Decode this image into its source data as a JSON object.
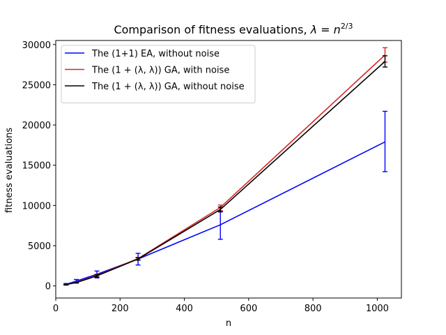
{
  "chart_data": {
    "type": "line",
    "title_main": "Comparison of fitness evaluations, ",
    "title_math": "λ = n",
    "title_sup": "2/3",
    "xlabel": "n",
    "ylabel": "fitness evaluations",
    "xlim": [
      0,
      1075
    ],
    "ylim": [
      -1500,
      30500
    ],
    "xticks": [
      0,
      200,
      400,
      600,
      800,
      1000
    ],
    "yticks": [
      0,
      5000,
      10000,
      15000,
      20000,
      25000,
      30000
    ],
    "legend_position": "upper-left",
    "x": [
      32,
      64,
      128,
      256,
      512,
      1024
    ],
    "series": [
      {
        "name": "The (1+1) EA, without noise",
        "color": "#0000ff",
        "values": [
          200,
          600,
          1450,
          3350,
          7600,
          17900
        ],
        "err_low": [
          100,
          350,
          1000,
          2600,
          5800,
          14200
        ],
        "err_high": [
          300,
          800,
          1850,
          4050,
          9300,
          21700
        ]
      },
      {
        "name": "The (1 + (λ, λ)) GA, with noise",
        "color": "#d62728",
        "values": [
          180,
          450,
          1300,
          3400,
          9750,
          28700
        ],
        "err_low": [
          150,
          400,
          1150,
          3250,
          9350,
          27800
        ],
        "err_high": [
          210,
          500,
          1450,
          3550,
          10050,
          29600
        ]
      },
      {
        "name": "The (1 + (λ, λ)) GA, without noise",
        "color": "#000000",
        "values": [
          170,
          420,
          1250,
          3350,
          9500,
          27900
        ],
        "err_low": [
          140,
          380,
          1100,
          3200,
          9200,
          27200
        ],
        "err_high": [
          200,
          460,
          1400,
          3500,
          9800,
          28600
        ]
      }
    ]
  }
}
